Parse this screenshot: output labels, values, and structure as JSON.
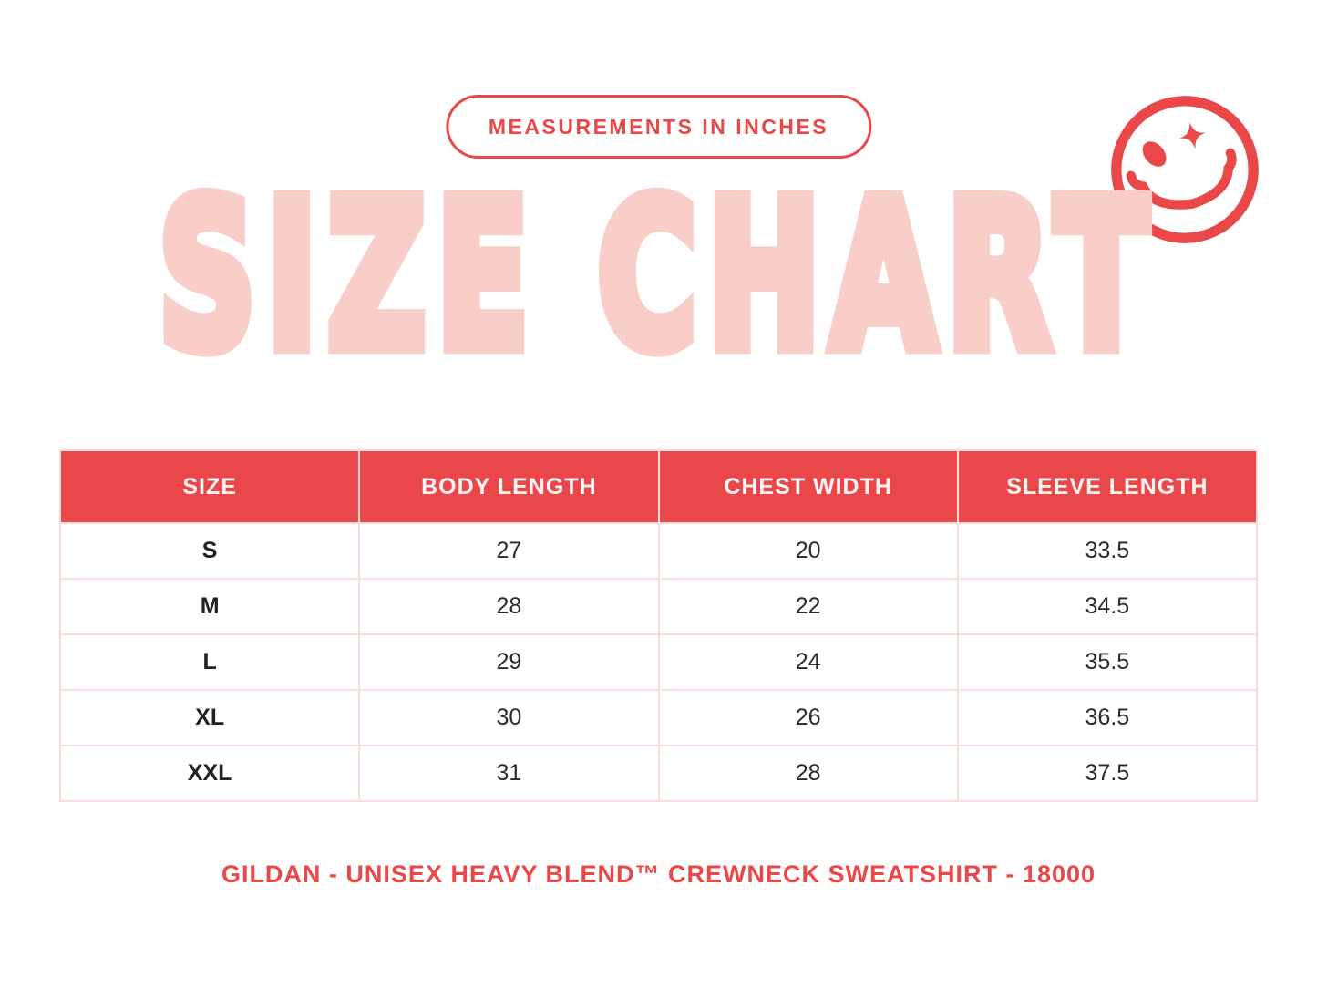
{
  "badge": {
    "label": "MEASUREMENTS IN INCHES"
  },
  "title": {
    "text": "SIZE CHART"
  },
  "chart_data": {
    "type": "table",
    "title": "SIZE CHART",
    "units_note": "MEASUREMENTS IN INCHES",
    "columns": [
      "SIZE",
      "BODY LENGTH",
      "CHEST WIDTH",
      "SLEEVE LENGTH"
    ],
    "rows": [
      [
        "S",
        "27",
        "20",
        "33.5"
      ],
      [
        "M",
        "28",
        "22",
        "34.5"
      ],
      [
        "L",
        "29",
        "24",
        "35.5"
      ],
      [
        "XL",
        "30",
        "26",
        "36.5"
      ],
      [
        "XXL",
        "31",
        "28",
        "37.5"
      ]
    ]
  },
  "footer": {
    "label": "GILDAN - UNISEX HEAVY BLEND™ CREWNECK SWEATSHIRT - 18000"
  },
  "icons": {
    "smiley": "winking-smiley-with-sparkle-eye-icon"
  },
  "colors": {
    "accent_red": "#e94748",
    "header_red": "#e9474a",
    "title_pink": "#f9cdc8",
    "table_border_pink": "#f8ddd8",
    "cell_text": "#2a2a2a",
    "background": "#ffffff"
  }
}
